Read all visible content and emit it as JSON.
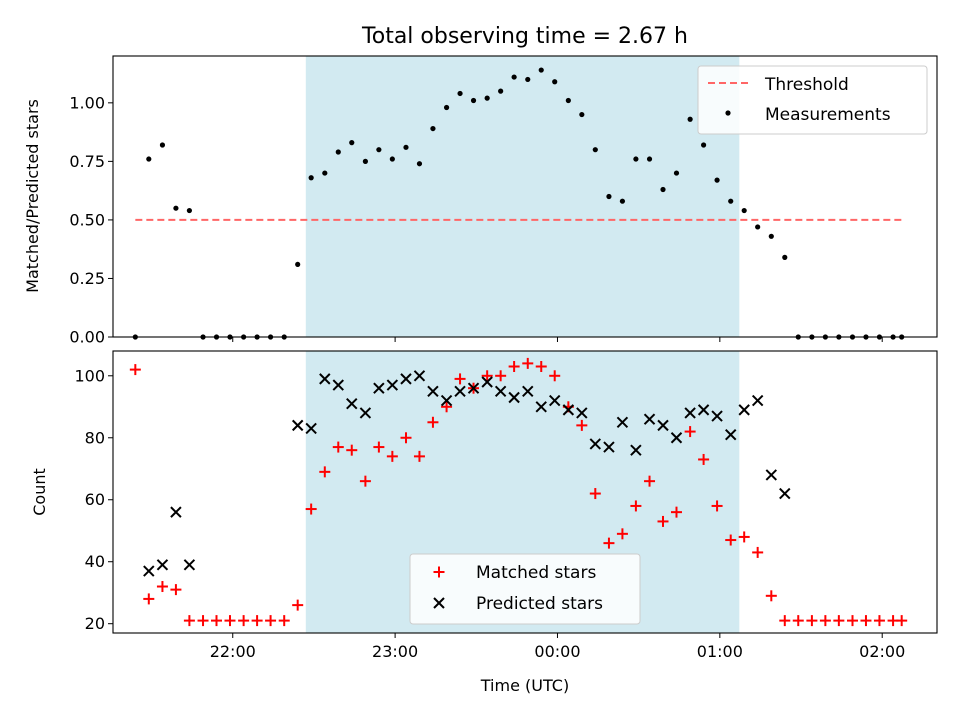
{
  "figure": {
    "title": "Total observing time = 2.67 h",
    "xlabel": "Time (UTC)",
    "x_ticks": [
      "22:00",
      "23:00",
      "00:00",
      "01:00",
      "02:00"
    ],
    "x_tick_hours": [
      22,
      23,
      24,
      25,
      26
    ],
    "x_range_hours": [
      21.2625,
      26.3375
    ],
    "observing_window_hours": [
      22.45,
      25.12
    ],
    "window_color": "#add8e6"
  },
  "chart_data": [
    {
      "type": "scatter",
      "ylabel": "Matched/Predicted stars",
      "ylim": [
        0.0,
        1.2
      ],
      "y_ticks": [
        "0.00",
        "0.25",
        "0.50",
        "0.75",
        "1.00"
      ],
      "y_tick_values": [
        0,
        0.25,
        0.5,
        0.75,
        1.0
      ],
      "legend_position": "top-right",
      "threshold": {
        "name": "Threshold",
        "value": 0.5,
        "x_hours": [
          21.4,
          26.12
        ],
        "color": "#ff6666",
        "style": "dashed"
      },
      "series": [
        {
          "name": "Measurements",
          "color": "#000000",
          "x_hours": [
            21.4,
            21.483,
            21.567,
            21.65,
            21.733,
            21.817,
            21.9,
            21.983,
            22.067,
            22.15,
            22.233,
            22.317,
            22.4,
            22.483,
            22.567,
            22.65,
            22.733,
            22.817,
            22.9,
            22.983,
            23.067,
            23.15,
            23.233,
            23.317,
            23.4,
            23.483,
            23.567,
            23.65,
            23.733,
            23.817,
            23.9,
            23.983,
            24.067,
            24.15,
            24.233,
            24.317,
            24.4,
            24.483,
            24.567,
            24.65,
            24.733,
            24.817,
            24.9,
            24.983,
            25.067,
            25.15,
            25.233,
            25.317,
            25.4,
            25.483,
            25.567,
            25.65,
            25.733,
            25.817,
            25.9,
            25.983,
            26.067,
            26.12
          ],
          "values": [
            0.0,
            0.76,
            0.82,
            0.55,
            0.54,
            0.0,
            0.0,
            0.0,
            0.0,
            0.0,
            0.0,
            0.0,
            0.31,
            0.68,
            0.7,
            0.79,
            0.83,
            0.75,
            0.8,
            0.76,
            0.81,
            0.74,
            0.89,
            0.98,
            1.04,
            1.01,
            1.02,
            1.05,
            1.11,
            1.1,
            1.14,
            1.09,
            1.01,
            0.95,
            0.8,
            0.6,
            0.58,
            0.76,
            0.76,
            0.63,
            0.7,
            0.93,
            0.82,
            0.67,
            0.58,
            0.54,
            0.47,
            0.43,
            0.34,
            0.0,
            0.0,
            0.0,
            0.0,
            0.0,
            0.0,
            0.0,
            0.0,
            0.0
          ]
        }
      ]
    },
    {
      "type": "scatter",
      "ylabel": "Count",
      "ylim": [
        17,
        108
      ],
      "y_ticks": [
        "20",
        "40",
        "60",
        "80",
        "100"
      ],
      "y_tick_values": [
        20,
        40,
        60,
        80,
        100
      ],
      "legend_position": "bottom-center",
      "series": [
        {
          "name": "Matched stars",
          "marker": "plus",
          "color": "#ff0000",
          "x_hours": [
            21.4,
            21.483,
            21.567,
            21.65,
            21.733,
            21.817,
            21.9,
            21.983,
            22.067,
            22.15,
            22.233,
            22.317,
            22.4,
            22.483,
            22.567,
            22.65,
            22.733,
            22.817,
            22.9,
            22.983,
            23.067,
            23.15,
            23.233,
            23.317,
            23.4,
            23.483,
            23.567,
            23.65,
            23.733,
            23.817,
            23.9,
            23.983,
            24.067,
            24.15,
            24.233,
            24.317,
            24.4,
            24.483,
            24.567,
            24.65,
            24.733,
            24.817,
            24.9,
            24.983,
            25.067,
            25.15,
            25.233,
            25.317,
            25.4,
            25.483,
            25.567,
            25.65,
            25.733,
            25.817,
            25.9,
            25.983,
            26.067,
            26.12
          ],
          "values": [
            102,
            28,
            32,
            31,
            21,
            21,
            21,
            21,
            21,
            21,
            21,
            21,
            26,
            57,
            69,
            77,
            76,
            66,
            77,
            74,
            80,
            74,
            85,
            90,
            99,
            96,
            100,
            100,
            103,
            104,
            103,
            100,
            90,
            84,
            62,
            46,
            49,
            58,
            66,
            53,
            56,
            82,
            73,
            58,
            47,
            48,
            43,
            29,
            21,
            21,
            21,
            21,
            21,
            21,
            21,
            21,
            21,
            21
          ]
        },
        {
          "name": "Predicted stars",
          "marker": "x",
          "color": "#000000",
          "x_hours": [
            21.483,
            21.567,
            21.65,
            21.733,
            22.4,
            22.483,
            22.567,
            22.65,
            22.733,
            22.817,
            22.9,
            22.983,
            23.067,
            23.15,
            23.233,
            23.317,
            23.4,
            23.483,
            23.567,
            23.65,
            23.733,
            23.817,
            23.9,
            23.983,
            24.067,
            24.15,
            24.233,
            24.317,
            24.4,
            24.483,
            24.567,
            24.65,
            24.733,
            24.817,
            24.9,
            24.983,
            25.067,
            25.15,
            25.233,
            25.317,
            25.4
          ],
          "values": [
            37,
            39,
            56,
            39,
            84,
            83,
            99,
            97,
            91,
            88,
            96,
            97,
            99,
            100,
            95,
            92,
            95,
            96,
            98,
            95,
            93,
            95,
            90,
            92,
            89,
            88,
            78,
            77,
            85,
            76,
            86,
            84,
            80,
            88,
            89,
            87,
            81,
            89,
            92,
            68,
            62
          ]
        }
      ]
    }
  ]
}
